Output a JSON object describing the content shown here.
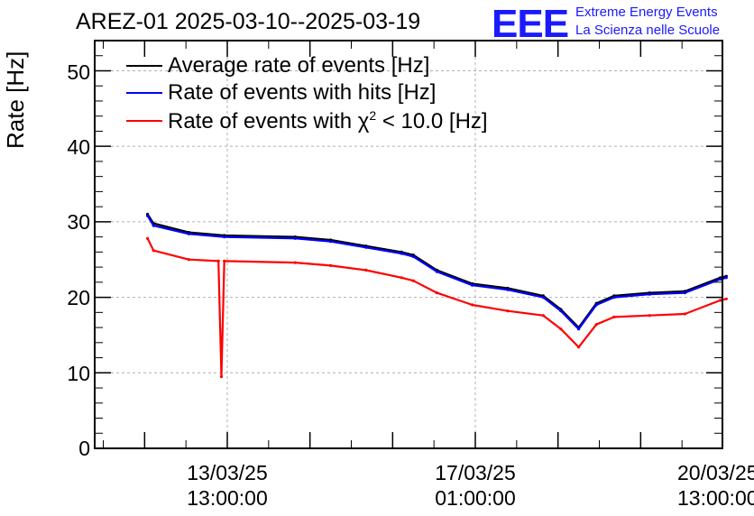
{
  "header": {
    "title": "AREZ-01 2025-03-10--2025-03-19",
    "logo_text": "EEE",
    "logo_line1": "Extreme Energy Events",
    "logo_line2": "La Scienza nelle Scuole"
  },
  "colors": {
    "avg": "#000000",
    "hits": "#0000ff",
    "chi2": "#ff0000",
    "brand": "#1a1aff"
  },
  "chart_data": {
    "type": "line",
    "title": "AREZ-01 2025-03-10--2025-03-19",
    "ylabel": "Rate [Hz]",
    "xlabel": "",
    "ylim": [
      0,
      54
    ],
    "grid": true,
    "legend_position": "top-left",
    "y_ticks": [
      "0",
      "10",
      "20",
      "30",
      "40",
      "50"
    ],
    "x_ticks": [
      {
        "date": "13/03/25",
        "time": "13:00:00"
      },
      {
        "date": "17/03/25",
        "time": "01:00:00"
      },
      {
        "date": "20/03/25",
        "time": "13:00:00"
      }
    ],
    "legend": [
      {
        "key": "avg",
        "label": "Average rate of events [Hz]"
      },
      {
        "key": "hits",
        "label": "Rate of events with hits [Hz]"
      },
      {
        "key": "chi2",
        "label_prefix": "Rate of events with χ",
        "label_sup": "2",
        "label_suffix": " < 10.0 [Hz]"
      }
    ],
    "series": [
      {
        "name": "Average rate of events [Hz]",
        "key": "avg",
        "points": [
          [
            "2025-03-12 10:00",
            31.0
          ],
          [
            "2025-03-12 12:00",
            29.8
          ],
          [
            "2025-03-13 00:00",
            28.6
          ],
          [
            "2025-03-13 12:00",
            28.2
          ],
          [
            "2025-03-14 12:00",
            28.0
          ],
          [
            "2025-03-15 00:00",
            27.6
          ],
          [
            "2025-03-15 12:00",
            26.8
          ],
          [
            "2025-03-16 00:00",
            26.0
          ],
          [
            "2025-03-16 04:00",
            25.6
          ],
          [
            "2025-03-16 12:00",
            23.6
          ],
          [
            "2025-03-17 00:00",
            21.8
          ],
          [
            "2025-03-17 12:00",
            21.2
          ],
          [
            "2025-03-18 00:00",
            20.2
          ],
          [
            "2025-03-18 06:00",
            18.4
          ],
          [
            "2025-03-18 12:00",
            16.0
          ],
          [
            "2025-03-18 18:00",
            19.2
          ],
          [
            "2025-03-19 00:00",
            20.2
          ],
          [
            "2025-03-19 12:00",
            20.6
          ],
          [
            "2025-03-20 00:00",
            20.8
          ],
          [
            "2025-03-20 12:00",
            22.6
          ],
          [
            "2025-03-20 14:00",
            22.8
          ]
        ]
      },
      {
        "name": "Rate of events with hits [Hz]",
        "key": "hits",
        "points": [
          [
            "2025-03-12 10:00",
            30.8
          ],
          [
            "2025-03-12 12:00",
            29.5
          ],
          [
            "2025-03-13 00:00",
            28.4
          ],
          [
            "2025-03-13 12:00",
            28.0
          ],
          [
            "2025-03-14 12:00",
            27.8
          ],
          [
            "2025-03-15 00:00",
            27.4
          ],
          [
            "2025-03-15 12:00",
            26.6
          ],
          [
            "2025-03-16 00:00",
            25.8
          ],
          [
            "2025-03-16 04:00",
            25.4
          ],
          [
            "2025-03-16 12:00",
            23.4
          ],
          [
            "2025-03-17 00:00",
            21.6
          ],
          [
            "2025-03-17 12:00",
            21.0
          ],
          [
            "2025-03-18 00:00",
            20.0
          ],
          [
            "2025-03-18 06:00",
            18.2
          ],
          [
            "2025-03-18 12:00",
            15.8
          ],
          [
            "2025-03-18 18:00",
            19.0
          ],
          [
            "2025-03-19 00:00",
            20.0
          ],
          [
            "2025-03-19 12:00",
            20.4
          ],
          [
            "2025-03-20 00:00",
            20.6
          ],
          [
            "2025-03-20 12:00",
            22.4
          ],
          [
            "2025-03-20 14:00",
            22.6
          ]
        ]
      },
      {
        "name": "Rate of events with χ2 < 10.0 [Hz]",
        "key": "chi2",
        "points": [
          [
            "2025-03-12 10:00",
            27.8
          ],
          [
            "2025-03-12 12:00",
            26.2
          ],
          [
            "2025-03-13 00:00",
            25.0
          ],
          [
            "2025-03-13 10:00",
            24.8
          ],
          [
            "2025-03-13 11:00",
            9.5
          ],
          [
            "2025-03-13 12:00",
            24.8
          ],
          [
            "2025-03-14 12:00",
            24.6
          ],
          [
            "2025-03-15 00:00",
            24.2
          ],
          [
            "2025-03-15 12:00",
            23.6
          ],
          [
            "2025-03-16 00:00",
            22.6
          ],
          [
            "2025-03-16 04:00",
            22.2
          ],
          [
            "2025-03-16 12:00",
            20.6
          ],
          [
            "2025-03-17 00:00",
            19.0
          ],
          [
            "2025-03-17 12:00",
            18.2
          ],
          [
            "2025-03-18 00:00",
            17.6
          ],
          [
            "2025-03-18 06:00",
            15.8
          ],
          [
            "2025-03-18 12:00",
            13.4
          ],
          [
            "2025-03-18 18:00",
            16.4
          ],
          [
            "2025-03-19 00:00",
            17.4
          ],
          [
            "2025-03-19 12:00",
            17.6
          ],
          [
            "2025-03-20 00:00",
            17.8
          ],
          [
            "2025-03-20 12:00",
            19.6
          ],
          [
            "2025-03-20 14:00",
            19.8
          ]
        ]
      }
    ]
  }
}
